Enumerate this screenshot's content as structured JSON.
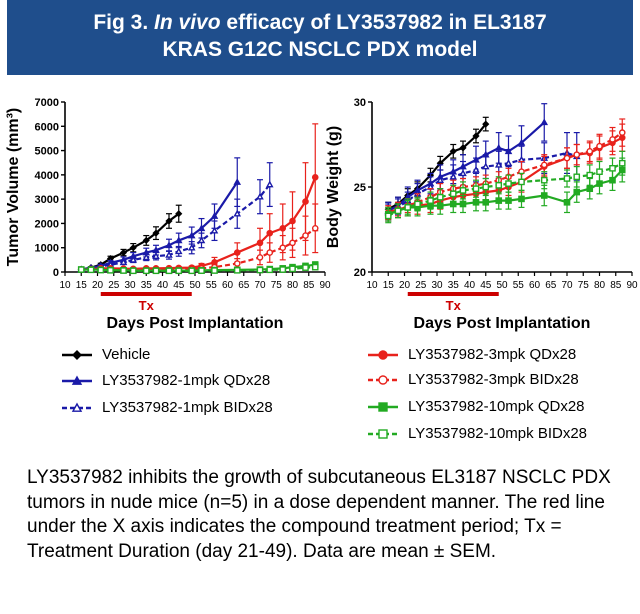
{
  "banner": {
    "line1_prefix": "Fig 3. ",
    "line1_italic": "In vivo",
    "line1_suffix": " efficacy of LY3537982 in EL3187",
    "line2": "KRAS G12C NSCLC PDX model"
  },
  "legend": [
    {
      "label": "Vehicle",
      "color": "#000000",
      "marker": "diamond",
      "dashed": false,
      "open": false
    },
    {
      "label": "LY3537982-1mpk QDx28",
      "color": "#1a1aa8",
      "marker": "triangle",
      "dashed": false,
      "open": false
    },
    {
      "label": "LY3537982-1mpk BIDx28",
      "color": "#1a1aa8",
      "marker": "triangle",
      "dashed": true,
      "open": true
    },
    {
      "label": "LY3537982-3mpk QDx28",
      "color": "#e8221c",
      "marker": "circle",
      "dashed": false,
      "open": false
    },
    {
      "label": "LY3537982-3mpk BIDx28",
      "color": "#e8221c",
      "marker": "circle",
      "dashed": true,
      "open": true
    },
    {
      "label": "LY3537982-10mpk QDx28",
      "color": "#22aa22",
      "marker": "square",
      "dashed": false,
      "open": false
    },
    {
      "label": "LY3537982-10mpk BIDx28",
      "color": "#22aa22",
      "marker": "square",
      "dashed": true,
      "open": true
    }
  ],
  "caption": "LY3537982 inhibits the growth of subcutaneous EL3187 NSCLC PDX tumors in nude mice (n=5) in a dose dependent manner. The red line under the X axis indicates the compound treatment period; Tx = Treatment Duration (day 21-49). Data are mean ± SEM.",
  "chart_data": [
    {
      "type": "line",
      "xlabel": "Days Post Implantation",
      "ylabel": "Tumor Volume (mm³)",
      "xlim": [
        10,
        90
      ],
      "ylim": [
        0,
        7000
      ],
      "xticks": [
        10,
        15,
        20,
        25,
        30,
        35,
        40,
        45,
        50,
        55,
        60,
        65,
        70,
        75,
        80,
        85,
        90
      ],
      "yticks": [
        0,
        1000,
        2000,
        3000,
        4000,
        5000,
        6000,
        7000
      ],
      "treatment_bar": {
        "start": 21,
        "end": 49,
        "label": "Tx",
        "color": "#cc0000"
      },
      "series": [
        {
          "name": "Vehicle",
          "x": [
            15,
            18,
            21,
            24,
            28,
            31,
            35,
            38,
            42,
            45
          ],
          "y": [
            100,
            180,
            300,
            550,
            800,
            1000,
            1300,
            1600,
            2100,
            2400
          ],
          "err": [
            20,
            40,
            60,
            100,
            130,
            170,
            200,
            260,
            300,
            350
          ]
        },
        {
          "name": "LY3537982-1mpk QDx28",
          "x": [
            15,
            18,
            21,
            24,
            28,
            31,
            35,
            38,
            42,
            45,
            49,
            52,
            56,
            63
          ],
          "y": [
            100,
            170,
            250,
            380,
            500,
            650,
            800,
            900,
            1100,
            1300,
            1500,
            1800,
            2300,
            3700
          ],
          "err": [
            20,
            40,
            60,
            90,
            120,
            150,
            180,
            200,
            250,
            300,
            350,
            400,
            500,
            1000
          ]
        },
        {
          "name": "LY3537982-1mpk BIDx28",
          "x": [
            15,
            18,
            21,
            24,
            28,
            31,
            35,
            38,
            42,
            45,
            49,
            52,
            56,
            63,
            70,
            73
          ],
          "y": [
            100,
            160,
            220,
            300,
            400,
            500,
            600,
            650,
            700,
            850,
            1000,
            1300,
            1700,
            2400,
            3100,
            3600
          ],
          "err": [
            20,
            30,
            50,
            70,
            90,
            110,
            130,
            150,
            170,
            200,
            250,
            300,
            400,
            600,
            700,
            900
          ]
        },
        {
          "name": "LY3537982-3mpk QDx28",
          "x": [
            15,
            18,
            21,
            24,
            28,
            31,
            35,
            38,
            42,
            45,
            49,
            52,
            56,
            63,
            70,
            73,
            77,
            80,
            84,
            87
          ],
          "y": [
            100,
            120,
            150,
            150,
            140,
            130,
            150,
            150,
            160,
            170,
            180,
            250,
            400,
            800,
            1200,
            1600,
            1800,
            2100,
            2900,
            3900
          ],
          "err": [
            20,
            30,
            40,
            40,
            40,
            40,
            40,
            40,
            40,
            50,
            60,
            100,
            200,
            400,
            600,
            800,
            1000,
            1200,
            1600,
            2200
          ]
        },
        {
          "name": "LY3537982-3mpk BIDx28",
          "x": [
            15,
            18,
            21,
            24,
            28,
            31,
            35,
            38,
            42,
            45,
            49,
            52,
            56,
            63,
            70,
            73,
            77,
            80,
            84,
            87
          ],
          "y": [
            100,
            110,
            120,
            120,
            110,
            100,
            100,
            100,
            100,
            110,
            120,
            150,
            200,
            350,
            600,
            800,
            1000,
            1200,
            1500,
            1800
          ],
          "err": [
            20,
            30,
            30,
            30,
            30,
            30,
            30,
            30,
            30,
            30,
            40,
            60,
            100,
            200,
            300,
            400,
            500,
            600,
            800,
            1000
          ]
        },
        {
          "name": "LY3537982-10mpk QDx28",
          "x": [
            15,
            18,
            21,
            24,
            28,
            31,
            35,
            38,
            42,
            45,
            49,
            52,
            56,
            63,
            70,
            73,
            77,
            80,
            84,
            87
          ],
          "y": [
            100,
            100,
            90,
            80,
            70,
            60,
            60,
            60,
            60,
            60,
            60,
            70,
            80,
            90,
            100,
            120,
            150,
            200,
            250,
            300
          ],
          "err": [
            20,
            20,
            20,
            20,
            20,
            20,
            20,
            20,
            20,
            20,
            20,
            20,
            30,
            30,
            40,
            50,
            60,
            80,
            100,
            120
          ]
        },
        {
          "name": "LY3537982-10mpk BIDx28",
          "x": [
            15,
            18,
            21,
            24,
            28,
            31,
            35,
            38,
            42,
            45,
            49,
            52,
            56,
            63,
            70,
            73,
            77,
            80,
            84,
            87
          ],
          "y": [
            100,
            90,
            80,
            70,
            60,
            50,
            50,
            50,
            50,
            50,
            50,
            55,
            60,
            70,
            80,
            90,
            100,
            130,
            180,
            200
          ],
          "err": [
            20,
            20,
            20,
            20,
            20,
            20,
            20,
            20,
            20,
            20,
            20,
            20,
            20,
            30,
            30,
            40,
            50,
            60,
            80,
            90
          ]
        }
      ]
    },
    {
      "type": "line",
      "xlabel": "Days Post Implantation",
      "ylabel": "Body Weight (g)",
      "xlim": [
        10,
        90
      ],
      "ylim": [
        20,
        30
      ],
      "xticks": [
        10,
        15,
        20,
        25,
        30,
        35,
        40,
        45,
        50,
        55,
        60,
        65,
        70,
        75,
        80,
        85,
        90
      ],
      "yticks": [
        20,
        25,
        30
      ],
      "treatment_bar": {
        "start": 21,
        "end": 49,
        "label": "Tx",
        "color": "#cc0000"
      },
      "series": [
        {
          "name": "Vehicle",
          "x": [
            15,
            18,
            21,
            24,
            28,
            31,
            35,
            38,
            42,
            45
          ],
          "y": [
            23.7,
            24.0,
            24.5,
            24.9,
            25.7,
            26.4,
            27.1,
            27.3,
            28.0,
            28.7
          ],
          "err": [
            0.4,
            0.4,
            0.4,
            0.4,
            0.4,
            0.4,
            0.4,
            0.4,
            0.4,
            0.4
          ]
        },
        {
          "name": "LY3537982-1mpk QDx28",
          "x": [
            15,
            18,
            21,
            24,
            28,
            31,
            35,
            38,
            42,
            45,
            49,
            52,
            56,
            63
          ],
          "y": [
            23.6,
            23.9,
            24.4,
            24.8,
            25.2,
            25.6,
            25.9,
            26.2,
            26.6,
            26.9,
            27.3,
            27.1,
            27.6,
            28.8
          ],
          "err": [
            0.5,
            0.5,
            0.6,
            0.6,
            0.6,
            0.7,
            0.7,
            0.7,
            0.8,
            0.8,
            0.9,
            0.9,
            1.0,
            1.1
          ]
        },
        {
          "name": "LY3537982-1mpk BIDx28",
          "x": [
            15,
            18,
            21,
            24,
            28,
            31,
            35,
            38,
            42,
            45,
            49,
            52,
            56,
            63,
            70,
            73
          ],
          "y": [
            23.5,
            23.8,
            24.2,
            24.6,
            25.0,
            25.4,
            25.6,
            25.8,
            26.0,
            26.2,
            26.3,
            26.4,
            26.6,
            26.7,
            27.0,
            26.8
          ],
          "err": [
            0.5,
            0.5,
            0.5,
            0.6,
            0.6,
            0.6,
            0.7,
            0.7,
            0.7,
            0.7,
            0.8,
            0.8,
            0.8,
            0.9,
            1.2,
            1.4
          ]
        },
        {
          "name": "LY3537982-3mpk QDx28",
          "x": [
            15,
            18,
            21,
            24,
            28,
            31,
            35,
            38,
            42,
            45,
            49,
            52,
            56,
            63,
            70,
            73,
            77,
            80,
            84,
            87
          ],
          "y": [
            23.5,
            23.7,
            23.8,
            23.9,
            24.0,
            24.2,
            24.4,
            24.5,
            24.6,
            24.7,
            24.8,
            25.0,
            25.3,
            26.2,
            26.7,
            26.9,
            27.0,
            27.3,
            27.6,
            27.9
          ],
          "err": [
            0.4,
            0.4,
            0.5,
            0.5,
            0.5,
            0.5,
            0.5,
            0.5,
            0.5,
            0.5,
            0.5,
            0.5,
            0.6,
            0.6,
            0.6,
            0.6,
            0.6,
            0.7,
            0.7,
            0.8
          ]
        },
        {
          "name": "LY3537982-3mpk BIDx28",
          "x": [
            15,
            18,
            21,
            24,
            28,
            31,
            35,
            38,
            42,
            45,
            49,
            52,
            56,
            63,
            70,
            73,
            77,
            80,
            84,
            87
          ],
          "y": [
            23.4,
            23.6,
            23.9,
            24.1,
            24.4,
            24.7,
            24.9,
            25.0,
            25.1,
            25.2,
            25.4,
            25.6,
            25.9,
            26.3,
            26.7,
            26.9,
            27.1,
            27.4,
            27.8,
            28.2
          ],
          "err": [
            0.4,
            0.4,
            0.4,
            0.5,
            0.5,
            0.5,
            0.5,
            0.5,
            0.5,
            0.5,
            0.5,
            0.5,
            0.6,
            0.6,
            0.6,
            0.6,
            0.6,
            0.7,
            0.7,
            0.8
          ]
        },
        {
          "name": "LY3537982-10mpk QDx28",
          "x": [
            15,
            18,
            21,
            24,
            28,
            31,
            35,
            38,
            42,
            45,
            49,
            52,
            56,
            63,
            70,
            73,
            77,
            80,
            84,
            87
          ],
          "y": [
            23.4,
            23.6,
            23.8,
            23.8,
            23.9,
            23.9,
            24.0,
            24.0,
            24.1,
            24.1,
            24.2,
            24.2,
            24.3,
            24.5,
            24.1,
            24.7,
            24.9,
            25.2,
            25.4,
            26.0
          ],
          "err": [
            0.4,
            0.4,
            0.5,
            0.5,
            0.5,
            0.5,
            0.5,
            0.5,
            0.5,
            0.5,
            0.5,
            0.5,
            0.5,
            0.6,
            0.6,
            0.6,
            0.6,
            0.6,
            0.6,
            0.7
          ]
        },
        {
          "name": "LY3537982-10mpk BIDx28",
          "x": [
            15,
            18,
            21,
            24,
            28,
            31,
            35,
            38,
            42,
            45,
            49,
            52,
            56,
            63,
            70,
            73,
            77,
            80,
            84,
            87
          ],
          "y": [
            23.3,
            23.6,
            23.8,
            24.0,
            24.2,
            24.4,
            24.6,
            24.8,
            24.9,
            25.0,
            25.1,
            25.2,
            25.3,
            25.4,
            25.5,
            25.6,
            25.7,
            25.9,
            26.1,
            26.4
          ],
          "err": [
            0.4,
            0.4,
            0.4,
            0.4,
            0.5,
            0.5,
            0.5,
            0.5,
            0.5,
            0.5,
            0.5,
            0.5,
            0.5,
            0.5,
            0.5,
            0.6,
            0.6,
            0.6,
            0.6,
            0.7
          ]
        }
      ]
    }
  ]
}
